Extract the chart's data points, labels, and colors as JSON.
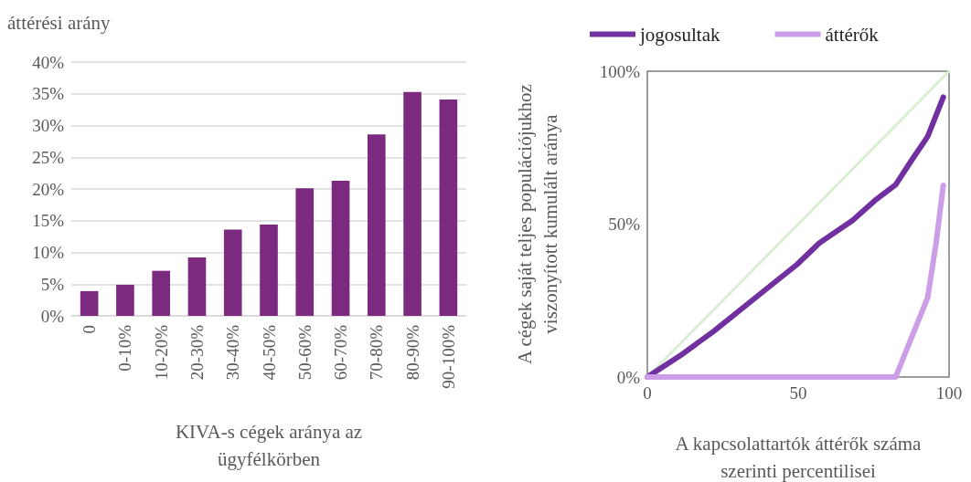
{
  "chart_data": [
    {
      "type": "bar",
      "ylabel": "áttérési arány",
      "xlabel": "KIVA-s cégek aránya az ügyfélkörben",
      "categories": [
        "0",
        "0-10%",
        "10-20%",
        "20-30%",
        "30-40%",
        "40-50%",
        "50-60%",
        "60-70%",
        "70-80%",
        "80-90%",
        "90-100%"
      ],
      "values": [
        3.9,
        4.9,
        7.1,
        9.2,
        13.6,
        14.4,
        20.1,
        21.3,
        28.6,
        35.3,
        34.1
      ],
      "color": "#7b2a80",
      "ylim": [
        0,
        40
      ],
      "yticks": [
        {
          "value": 0,
          "label": "0%"
        },
        {
          "value": 5,
          "label": "5%"
        },
        {
          "value": 10,
          "label": "10%"
        },
        {
          "value": 15,
          "label": "15%"
        },
        {
          "value": 20,
          "label": "20%"
        },
        {
          "value": 25,
          "label": "25%"
        },
        {
          "value": 30,
          "label": "30%"
        },
        {
          "value": 35,
          "label": "35%"
        },
        {
          "value": 40,
          "label": "40%"
        }
      ],
      "grid": "y"
    },
    {
      "type": "line",
      "xlabel": "A kapcsolattartók áttérők száma szerinti percentilisei",
      "ylabel": "A cégek saját teljes populációjukhoz viszonyított kumulált aránya",
      "series": [
        {
          "name": "jogosultak",
          "color": "#7030a0",
          "x": [
            0,
            10.9,
            21.9,
            35.8,
            49.6,
            57.0,
            68.0,
            75.4,
            82.3,
            87.4,
            92.9,
            98.1
          ],
          "values": [
            0,
            7.0,
            14.9,
            25.9,
            36.8,
            43.8,
            51.2,
            57.7,
            62.9,
            70.6,
            78.6,
            91.5
          ]
        },
        {
          "name": "áttérők",
          "color": "#cc9ee8",
          "x": [
            0,
            82.3,
            92.9,
            95.7,
            98.1
          ],
          "values": [
            0,
            0,
            25.9,
            43.8,
            62.7
          ]
        },
        {
          "color": "#d9efd3",
          "x": [
            0,
            100
          ],
          "values": [
            0,
            100
          ]
        }
      ],
      "xlim": [
        0,
        100
      ],
      "xticks": [
        0,
        50,
        100
      ],
      "ylim": [
        0,
        100
      ],
      "yticks": [
        {
          "value": 0,
          "label": "0%"
        },
        {
          "value": 50,
          "label": "50%"
        },
        {
          "value": 100,
          "label": "100%"
        }
      ],
      "grid": false,
      "legend": "top",
      "marker": "none",
      "line_style": "solid"
    }
  ]
}
